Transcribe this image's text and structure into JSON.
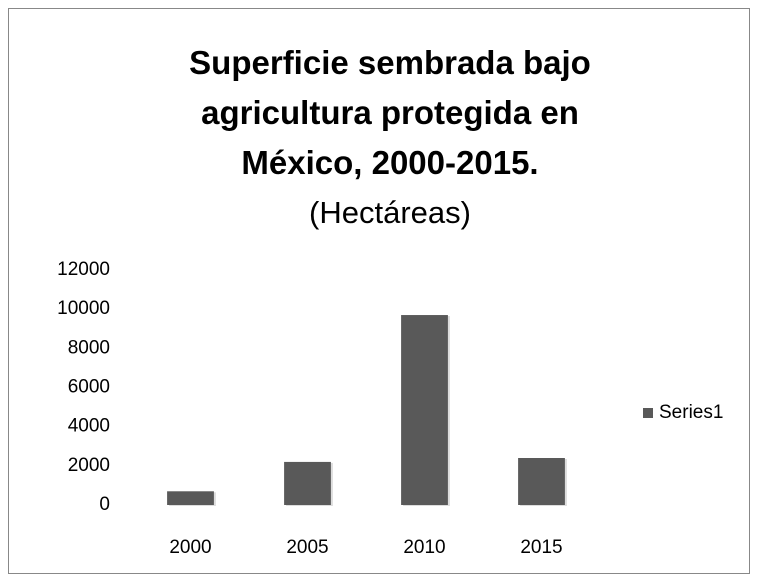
{
  "chart_data": {
    "type": "bar",
    "title": "Superficie sembrada bajo agricultura protegida en México, 2000-2015.",
    "subtitle": "(Hectáreas)",
    "categories": [
      "2000",
      "2005",
      "2010",
      "2015"
    ],
    "series": [
      {
        "name": "Series1",
        "color": "#595959",
        "values": [
          700,
          2200,
          9700,
          2400
        ]
      }
    ],
    "ylim": [
      0,
      12000
    ],
    "yticks": [
      0,
      2000,
      4000,
      6000,
      8000,
      10000,
      12000
    ],
    "grid": false,
    "legend": "right"
  }
}
